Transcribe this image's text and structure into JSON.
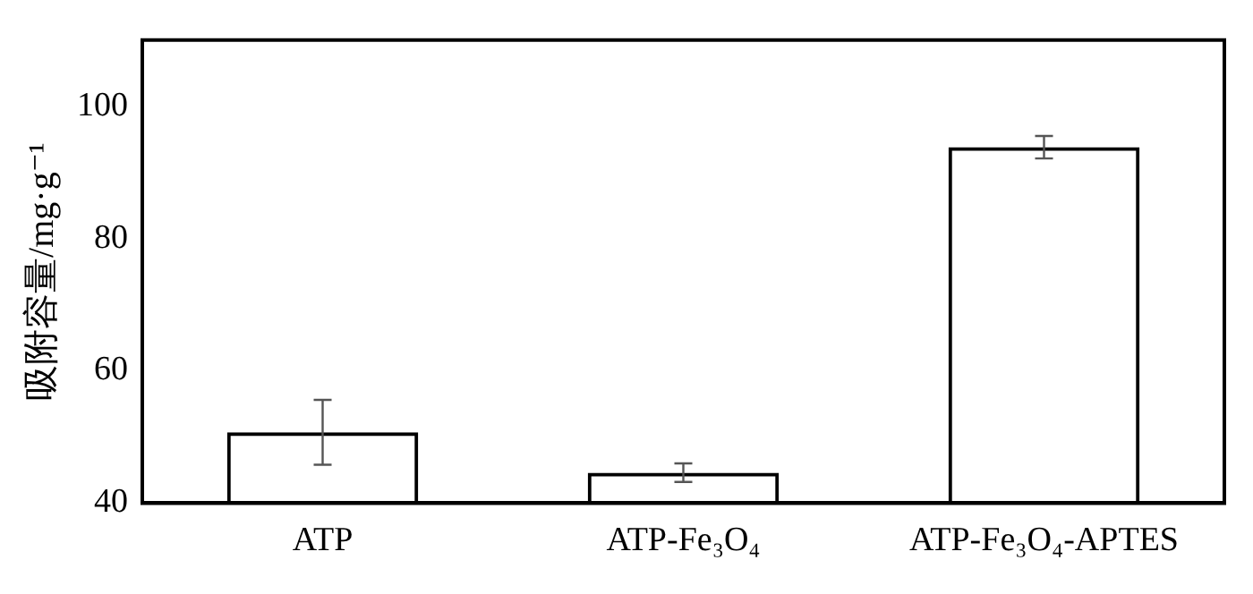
{
  "chart_data": {
    "type": "bar",
    "ylabel": "吸附容量/mg·g⁻¹",
    "categories": [
      "ATP",
      "ATP-Fe₃O₄",
      "ATP-Fe₃O₄-APTES"
    ],
    "series": [
      {
        "color": "#000000",
        "values": [
          50.7,
          44.6,
          93.8
        ],
        "errors": [
          4.9,
          1.4,
          1.7
        ]
      }
    ],
    "ylim": [
      40,
      110
    ],
    "yticks": [
      40,
      60,
      80,
      100
    ],
    "grid": false,
    "legend": false
  }
}
